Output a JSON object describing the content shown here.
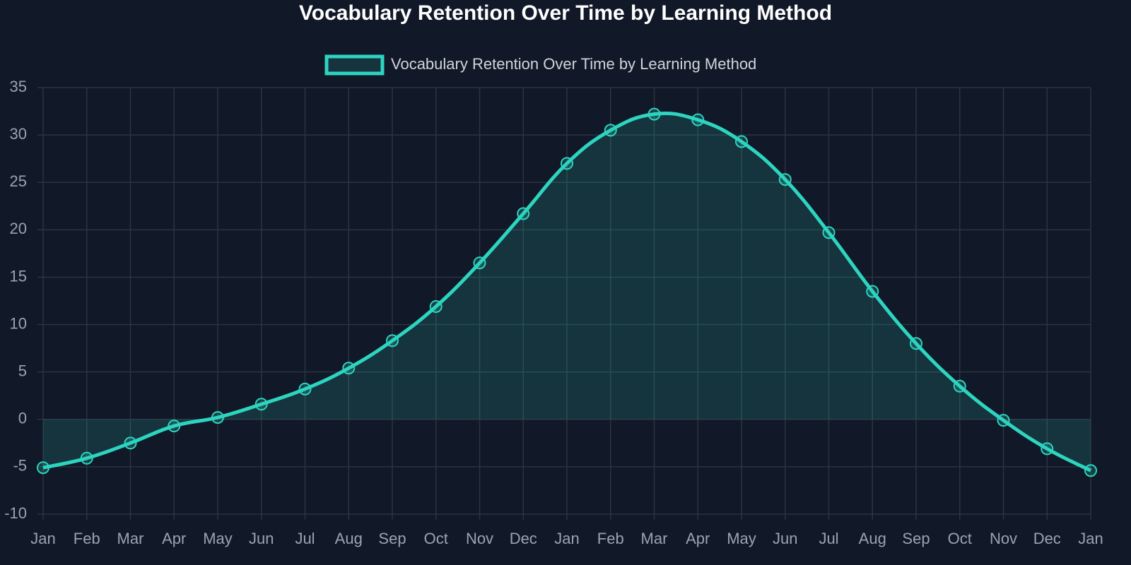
{
  "chart_data": {
    "type": "line",
    "title": "Vocabulary Retention Over Time by Learning Method",
    "categories": [
      "Jan",
      "Feb",
      "Mar",
      "Apr",
      "May",
      "Jun",
      "Jul",
      "Aug",
      "Sep",
      "Oct",
      "Nov",
      "Dec",
      "Jan",
      "Feb",
      "Mar",
      "Apr",
      "May",
      "Jun",
      "Jul",
      "Aug",
      "Sep",
      "Oct",
      "Nov",
      "Dec",
      "Jan"
    ],
    "series": [
      {
        "name": "Vocabulary Retention Over Time by Learning Method",
        "color": "#2dd4bf",
        "values": [
          -5.1,
          -4.1,
          -2.5,
          -0.7,
          0.2,
          1.6,
          3.2,
          5.4,
          8.3,
          11.9,
          16.5,
          21.7,
          27.0,
          30.5,
          32.2,
          31.6,
          29.3,
          25.3,
          19.7,
          13.5,
          8.0,
          3.5,
          -0.1,
          -3.1,
          -5.4
        ]
      }
    ],
    "ylim": [
      -10,
      35
    ],
    "yticks": [
      -10,
      -5,
      0,
      5,
      10,
      15,
      20,
      25,
      30,
      35
    ],
    "grid": true,
    "legend": "top",
    "fill": true
  }
}
